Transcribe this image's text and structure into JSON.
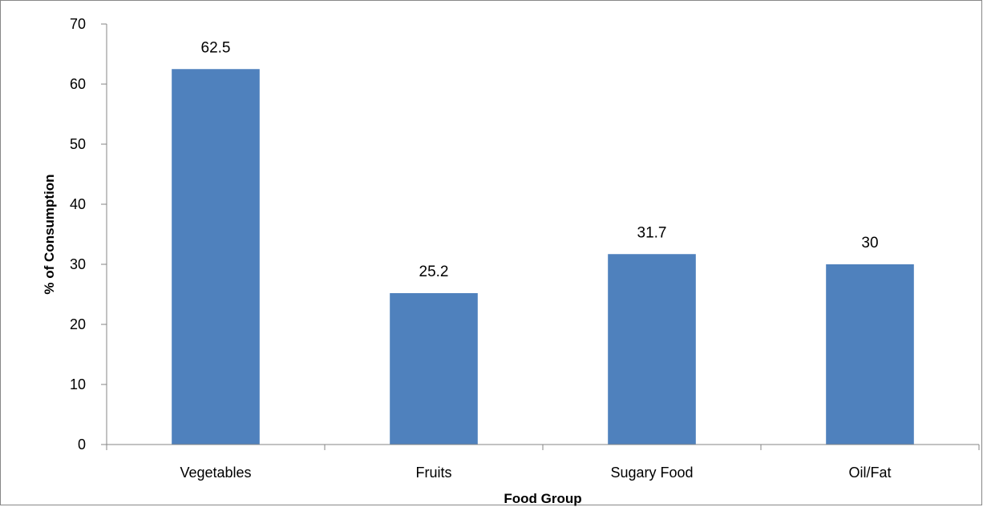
{
  "chart_data": {
    "type": "bar",
    "categories": [
      "Vegetables",
      "Fruits",
      "Sugary Food",
      "Oil/Fat"
    ],
    "values": [
      62.5,
      25.2,
      31.7,
      30
    ],
    "value_labels": [
      "62.5",
      "25.2",
      "31.7",
      "30"
    ],
    "xlabel": "Food Group",
    "ylabel": "% of Consumption",
    "ylim": [
      0,
      70
    ],
    "yticks": [
      0,
      10,
      20,
      30,
      40,
      50,
      60,
      70
    ],
    "grid": false,
    "legend": "none",
    "colors": {
      "bar": "#4F81BD",
      "axis": "#868686"
    }
  }
}
